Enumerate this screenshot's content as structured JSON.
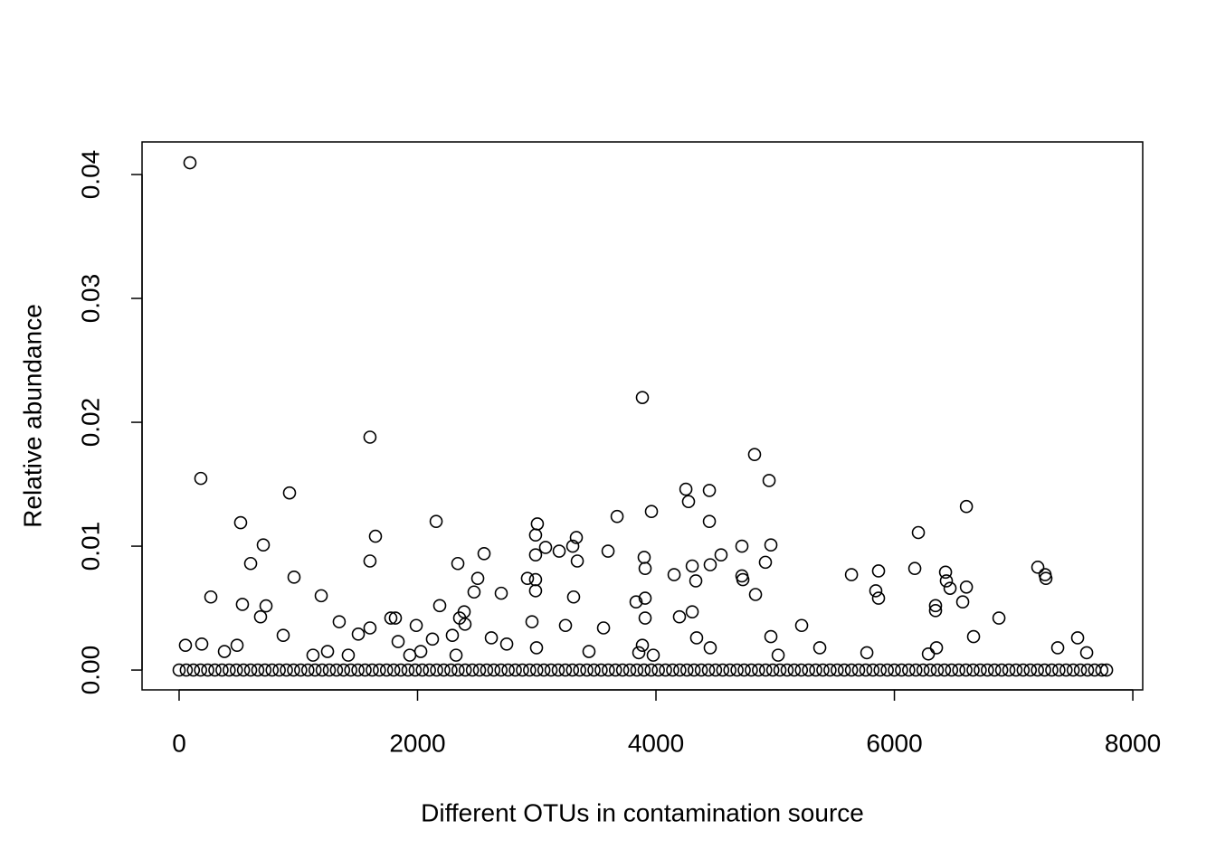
{
  "chart_data": {
    "type": "scatter",
    "x_label": "Different OTUs in contamination source",
    "y_label": "Relative abundance",
    "xlim": [
      -311,
      8083
    ],
    "ylim": [
      -0.0016,
      0.04263
    ],
    "xticks": [
      0,
      2000,
      4000,
      6000,
      8000
    ],
    "yticks": [
      {
        "value": 0,
        "label": "0.00"
      },
      0.01,
      0.02,
      0.03,
      0.04
    ],
    "color": "#000000",
    "x": [
      91,
      182,
      516,
      729,
      600,
      683,
      706,
      926,
      964,
      266,
      531,
      486,
      53,
      190,
      873,
      1192,
      1343,
      1601,
      1647,
      1601,
      1601,
      1503,
      1776,
      1814,
      1989,
      1837,
      2156,
      2186,
      2338,
      2353,
      2391,
      2398,
      2558,
      2505,
      2474,
      2702,
      2292,
      2125,
      2619,
      2748,
      2922,
      2990,
      2990,
      3005,
      2990,
      2990,
      3074,
      2960,
      3188,
      3302,
      3332,
      3340,
      3309,
      3241,
      3598,
      3560,
      3674,
      3886,
      3901,
      3909,
      3909,
      3909,
      3833,
      3962,
      4152,
      4251,
      4273,
      4304,
      4334,
      4304,
      4197,
      4448,
      4448,
      4455,
      4546,
      4341,
      4455,
      4827,
      4949,
      4721,
      4721,
      4729,
      4918,
      4964,
      4835,
      4964,
      5222,
      5374,
      5640,
      5844,
      5867,
      5867,
      6171,
      6201,
      6345,
      6345,
      6429,
      6436,
      6467,
      6604,
      6604,
      6573,
      6664,
      6877,
      7203,
      7264,
      7271,
      7370,
      7537,
      6353,
      7613,
      5025,
      3977,
      3438,
      1123,
      1245,
      1419,
      2027,
      2323,
      1935,
      380,
      2998,
      5769,
      6285,
      3886,
      3856,
      0,
      60,
      120,
      180,
      240,
      300,
      360,
      420,
      480,
      540,
      600,
      660,
      720,
      780,
      840,
      900,
      960,
      1020,
      1080,
      1140,
      1200,
      1260,
      1320,
      1380,
      1440,
      1500,
      1560,
      1620,
      1680,
      1740,
      1800,
      1860,
      1920,
      1980,
      2040,
      2100,
      2160,
      2220,
      2280,
      2340,
      2400,
      2460,
      2520,
      2580,
      2640,
      2700,
      2760,
      2820,
      2880,
      2940,
      3000,
      3060,
      3120,
      3180,
      3240,
      3300,
      3360,
      3420,
      3480,
      3540,
      3600,
      3660,
      3720,
      3780,
      3840,
      3900,
      3960,
      4020,
      4080,
      4140,
      4200,
      4260,
      4320,
      4380,
      4440,
      4500,
      4560,
      4620,
      4680,
      4740,
      4800,
      4860,
      4920,
      4980,
      5040,
      5100,
      5160,
      5220,
      5280,
      5340,
      5400,
      5460,
      5520,
      5580,
      5640,
      5700,
      5760,
      5820,
      5880,
      5940,
      6000,
      6060,
      6120,
      6180,
      6240,
      6300,
      6360,
      6420,
      6480,
      6540,
      6600,
      6660,
      6720,
      6780,
      6840,
      6900,
      6960,
      7020,
      7080,
      7140,
      7200,
      7260,
      7320,
      7380,
      7440,
      7500,
      7560,
      7620,
      7680,
      7740,
      7780
    ],
    "values": [
      0.04095,
      0.01547,
      0.0119,
      0.00518,
      0.0086,
      0.0043,
      0.0101,
      0.0143,
      0.0075,
      0.0059,
      0.0053,
      0.002,
      0.002,
      0.0021,
      0.0028,
      0.006,
      0.0039,
      0.0188,
      0.0108,
      0.0088,
      0.0034,
      0.0029,
      0.0042,
      0.0042,
      0.0036,
      0.0023,
      0.012,
      0.0052,
      0.0086,
      0.0042,
      0.0047,
      0.0037,
      0.0094,
      0.0074,
      0.0063,
      0.0062,
      0.0028,
      0.0025,
      0.0026,
      0.0021,
      0.0074,
      0.0073,
      0.0064,
      0.0118,
      0.0109,
      0.0093,
      0.0099,
      0.0039,
      0.0096,
      0.01,
      0.0107,
      0.0088,
      0.0059,
      0.0036,
      0.0096,
      0.0034,
      0.0124,
      0.022,
      0.0091,
      0.0082,
      0.0058,
      0.0042,
      0.0055,
      0.0128,
      0.0077,
      0.0146,
      0.0136,
      0.0084,
      0.0072,
      0.0047,
      0.0043,
      0.0145,
      0.012,
      0.0085,
      0.0093,
      0.0026,
      0.0018,
      0.0174,
      0.0153,
      0.01,
      0.0076,
      0.0073,
      0.0087,
      0.0101,
      0.0061,
      0.0027,
      0.0036,
      0.0018,
      0.0077,
      0.0064,
      0.008,
      0.0058,
      0.0082,
      0.0111,
      0.0052,
      0.0048,
      0.0079,
      0.0072,
      0.0066,
      0.0132,
      0.0067,
      0.0055,
      0.0027,
      0.0042,
      0.0083,
      0.0077,
      0.0074,
      0.0018,
      0.0026,
      0.0018,
      0.0014,
      0.0012,
      0.0012,
      0.0015,
      0.0012,
      0.0015,
      0.0012,
      0.0015,
      0.0012,
      0.0012,
      0.0015,
      0.0018,
      0.0014,
      0.0013,
      0.002,
      0.0014,
      0,
      0,
      0,
      0,
      0,
      0,
      0,
      0,
      0,
      0,
      0,
      0,
      0,
      0,
      0,
      0,
      0,
      0,
      0,
      0,
      0,
      0,
      0,
      0,
      0,
      0,
      0,
      0,
      0,
      0,
      0,
      0,
      0,
      0,
      0,
      0,
      0,
      0,
      0,
      0,
      0,
      0,
      0,
      0,
      0,
      0,
      0,
      0,
      0,
      0,
      0,
      0,
      0,
      0,
      0,
      0,
      0,
      0,
      0,
      0,
      0,
      0,
      0,
      0,
      0,
      0,
      0,
      0,
      0,
      0,
      0,
      0,
      0,
      0,
      0,
      0,
      0,
      0,
      0,
      0,
      0,
      0,
      0,
      0,
      0,
      0,
      0,
      0,
      0,
      0,
      0,
      0,
      0,
      0,
      0,
      0,
      0,
      0,
      0,
      0,
      0,
      0,
      0,
      0,
      0,
      0,
      0,
      0,
      0,
      0,
      0,
      0,
      0,
      0,
      0,
      0,
      0,
      0,
      0,
      0,
      0,
      0,
      0,
      0,
      0,
      0,
      0,
      0,
      0,
      0,
      0
    ]
  }
}
